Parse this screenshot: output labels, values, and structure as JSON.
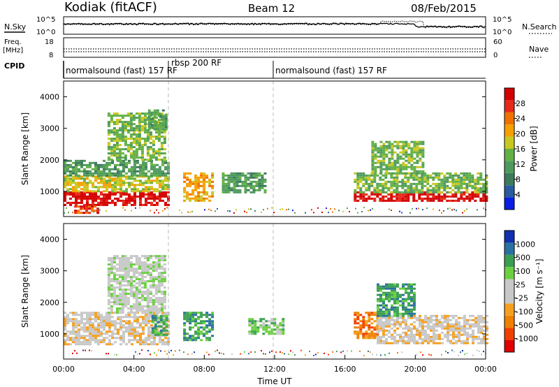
{
  "header": {
    "left": "Kodiak (fitACF)",
    "center": "Beam 12",
    "right": "08/Feb/2015"
  },
  "top_panels": {
    "nsky": {
      "label": "N.Sky",
      "ticks": [
        "10^5",
        "10^0"
      ],
      "right_ticks": [
        "10^5",
        "10^0"
      ],
      "right_label": "N.Search"
    },
    "freq": {
      "label_line1": "Freq.",
      "label_line2": "[MHz]",
      "ticks": [
        "18",
        "8"
      ],
      "right_ticks": [
        "60",
        "0"
      ],
      "right_label": "Nave"
    },
    "cpid": {
      "label": "CPID",
      "segments": [
        {
          "text": "normalsound (fast) 157 RF"
        },
        {
          "text": "rbsp 200 RF"
        },
        {
          "text": "normalsound (fast) 157 RF"
        }
      ]
    }
  },
  "chart_data": [
    {
      "type": "heatmap",
      "title": "",
      "xlabel": "",
      "ylabel": "Slant Range [km]",
      "y_ticks": [
        "1000",
        "2000",
        "3000",
        "4000"
      ],
      "ylim": [
        200,
        4500
      ],
      "xlim_hours": [
        0,
        24
      ],
      "colorbar": {
        "label": "Power [dB]",
        "ticks": [
          "4",
          "8",
          "12",
          "16",
          "20",
          "24",
          "28"
        ],
        "colors": [
          "#0a1ee6",
          "#2a5aa0",
          "#3c7a5a",
          "#4e9a5e",
          "#63b045",
          "#c8c820",
          "#f5a000",
          "#f07000",
          "#e82818",
          "#d40000"
        ]
      },
      "blobs": [
        {
          "t0": 0.0,
          "t1": 5.9,
          "r0": 600,
          "r1": 1000,
          "level": 9
        },
        {
          "t0": 0.0,
          "t1": 5.9,
          "r0": 1000,
          "r1": 1500,
          "level": 5
        },
        {
          "t0": 0.0,
          "t1": 5.9,
          "r0": 1500,
          "r1": 2000,
          "level": 3
        },
        {
          "t0": 0.6,
          "t1": 2.0,
          "r0": 350,
          "r1": 550,
          "level": 8
        },
        {
          "t0": 2.5,
          "t1": 5.8,
          "r0": 2000,
          "r1": 3500,
          "level": 4
        },
        {
          "t0": 4.8,
          "t1": 5.9,
          "r0": 3000,
          "r1": 3600,
          "level": 3
        },
        {
          "t0": 6.8,
          "t1": 8.5,
          "r0": 700,
          "r1": 1600,
          "level": 6
        },
        {
          "t0": 9.0,
          "t1": 11.5,
          "r0": 1000,
          "r1": 1600,
          "level": 3
        },
        {
          "t0": 16.5,
          "t1": 24.0,
          "r0": 700,
          "r1": 1000,
          "level": 9
        },
        {
          "t0": 16.5,
          "t1": 24.0,
          "r0": 1000,
          "r1": 1600,
          "level": 4
        },
        {
          "t0": 17.5,
          "t1": 20.5,
          "r0": 1600,
          "r1": 2600,
          "level": 4
        }
      ]
    },
    {
      "type": "heatmap",
      "title": "",
      "xlabel": "Time UT",
      "ylabel": "Slant Range [km]",
      "x_ticks": [
        "00:00",
        "04:00",
        "08:00",
        "12:00",
        "16:00",
        "20:00",
        "00:00"
      ],
      "y_ticks": [
        "1000",
        "2000",
        "3000",
        "4000"
      ],
      "ylim": [
        200,
        4500
      ],
      "xlim_hours": [
        0,
        24
      ],
      "colorbar": {
        "label": "Velocity [m s⁻¹]",
        "ticks": [
          "-1000",
          "-500",
          "-100",
          "-25",
          "25",
          "100",
          "500",
          "1000"
        ],
        "colors": [
          "#e00000",
          "#f04000",
          "#f08000",
          "#f5a020",
          "#c8c8c8",
          "#c8c8c8",
          "#6ad040",
          "#3aa050",
          "#2a70a0",
          "#1030b0"
        ]
      },
      "blobs": [
        {
          "t0": 0.0,
          "t1": 5.9,
          "r0": 700,
          "r1": 1700,
          "level": 4
        },
        {
          "t0": 2.5,
          "t1": 5.8,
          "r0": 1700,
          "r1": 3500,
          "level": 5
        },
        {
          "t0": 5.0,
          "t1": 5.9,
          "r0": 1000,
          "r1": 1600,
          "level": 7
        },
        {
          "t0": 6.8,
          "t1": 8.5,
          "r0": 800,
          "r1": 1700,
          "level": 7
        },
        {
          "t0": 10.5,
          "t1": 12.5,
          "r0": 1000,
          "r1": 1500,
          "level": 6
        },
        {
          "t0": 16.5,
          "t1": 17.8,
          "r0": 900,
          "r1": 1700,
          "level": 2
        },
        {
          "t0": 17.8,
          "t1": 24.0,
          "r0": 700,
          "r1": 1600,
          "level": 4
        },
        {
          "t0": 17.8,
          "t1": 20.0,
          "r0": 1600,
          "r1": 2600,
          "level": 7
        }
      ]
    }
  ]
}
